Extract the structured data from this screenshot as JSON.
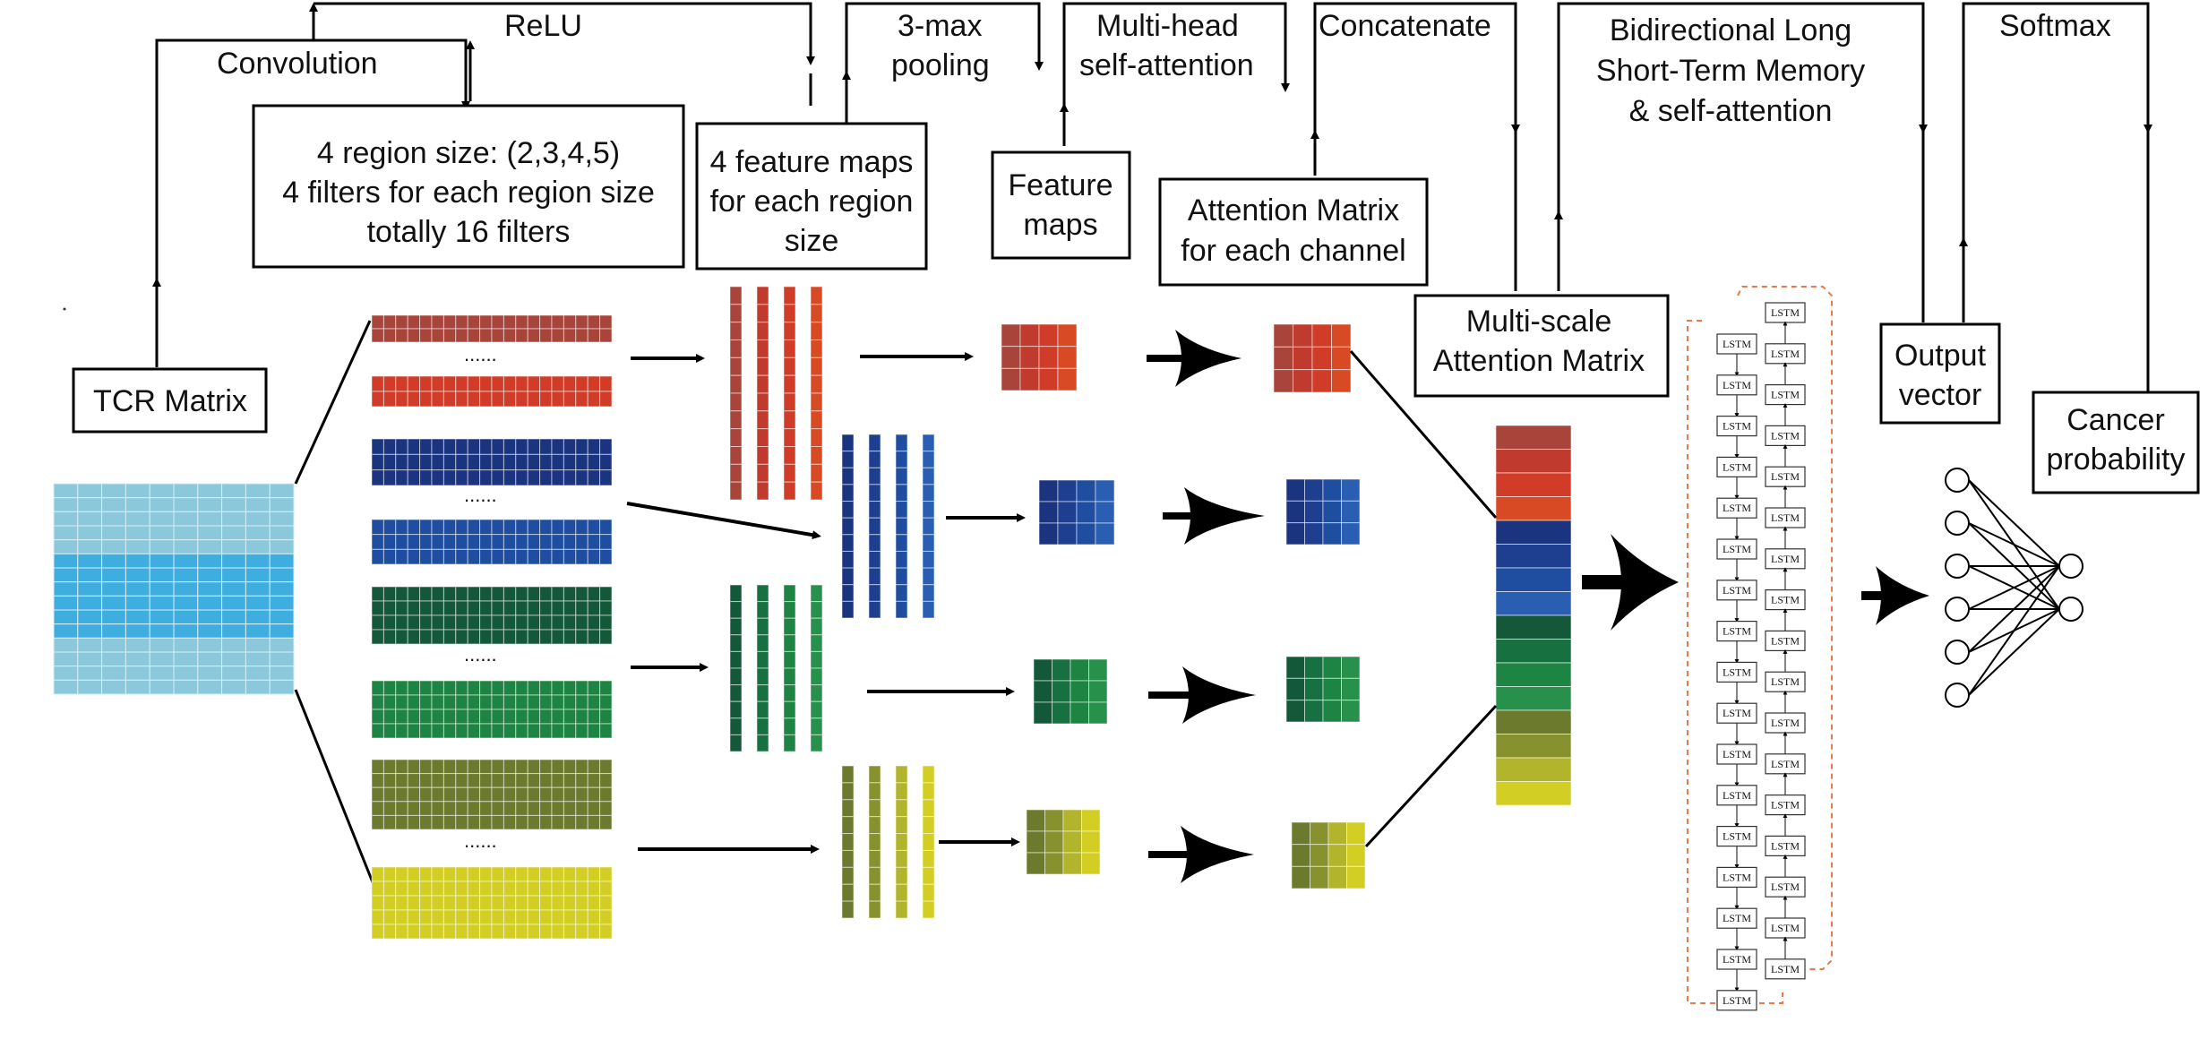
{
  "stages": {
    "convolution": "Convolution",
    "relu": "ReLU",
    "pooling": [
      "3-max",
      "pooling"
    ],
    "attention": [
      "Multi-head",
      "self-attention"
    ],
    "concatenate": "Concatenate",
    "bilstm": [
      "Bidirectional Long",
      "Short-Term Memory",
      "& self-attention"
    ],
    "softmax": "Softmax"
  },
  "boxes": {
    "tcr_matrix": "TCR Matrix",
    "filters": [
      "4 region size: (2,3,4,5)",
      "4 filters for each region size",
      "totally 16 filters"
    ],
    "feature_maps_region": [
      "4 feature maps",
      "for each region",
      "size"
    ],
    "feature_maps": [
      "Feature",
      "maps"
    ],
    "attention_matrix": [
      "Attention Matrix",
      "for each channel"
    ],
    "multiscale": [
      "Multi-scale",
      "Attention Matrix"
    ],
    "output_vector": [
      "Output",
      "vector"
    ],
    "cancer_probability": [
      "Cancer",
      "probability"
    ]
  },
  "misc": {
    "ellipsis": "......",
    "lstm": "LSTM"
  },
  "colors": {
    "tcr_light": "#8cc8dc",
    "tcr_bright": "#3eaee0",
    "g1": [
      "#a8443a",
      "#c03a2e",
      "#d03c28",
      "#d84a24"
    ],
    "g2": [
      "#1a3480",
      "#1e3f90",
      "#1f4ea0",
      "#2a5eb2"
    ],
    "g3": [
      "#14583a",
      "#17703f",
      "#1e8443",
      "#27904a"
    ],
    "g4": [
      "#6c7a2e",
      "#87922e",
      "#b2b42c",
      "#d2ce24"
    ],
    "lstm_border": "#e47c50"
  }
}
